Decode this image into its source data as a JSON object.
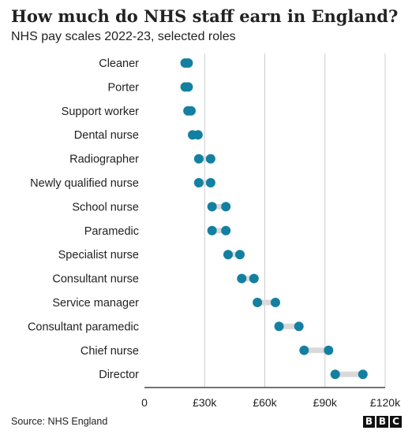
{
  "title": "How much do NHS staff earn in England?",
  "subtitle": "NHS pay scales 2022-23, selected roles",
  "source": "Source: NHS England",
  "logo": [
    "B",
    "B",
    "C"
  ],
  "colors": {
    "dot": "#1380a1",
    "range_bar": "#d9d9d9",
    "grid": "#cccccc",
    "axis": "#222222",
    "text": "#222222"
  },
  "chart_data": {
    "type": "dumbbell",
    "title": "How much do NHS staff earn in England?",
    "subtitle": "NHS pay scales 2022-23, selected roles",
    "xlabel": "",
    "ylabel": "",
    "xlim": [
      0,
      120000
    ],
    "grid": true,
    "x_ticks": [
      {
        "value": 0,
        "label": "0"
      },
      {
        "value": 30000,
        "label": "£30k"
      },
      {
        "value": 60000,
        "label": "£60k"
      },
      {
        "value": 90000,
        "label": "£90k"
      },
      {
        "value": 120000,
        "label": "£120k"
      }
    ],
    "categories": [
      "Cleaner",
      "Porter",
      "Support worker",
      "Dental nurse",
      "Radiographer",
      "Newly qualified nurse",
      "School nurse",
      "Paramedic",
      "Specialist nurse",
      "Consultant nurse",
      "Service manager",
      "Consultant paramedic",
      "Chief nurse",
      "Director"
    ],
    "ranges": [
      {
        "category": "Cleaner",
        "min": 20300,
        "max": 21800
      },
      {
        "category": "Porter",
        "min": 20300,
        "max": 21800
      },
      {
        "category": "Support worker",
        "min": 21700,
        "max": 23200
      },
      {
        "category": "Dental nurse",
        "min": 24000,
        "max": 26700
      },
      {
        "category": "Radiographer",
        "min": 27100,
        "max": 33000
      },
      {
        "category": "Newly qualified nurse",
        "min": 27100,
        "max": 33000
      },
      {
        "category": "School nurse",
        "min": 33700,
        "max": 40600
      },
      {
        "category": "Paramedic",
        "min": 33700,
        "max": 40600
      },
      {
        "category": "Specialist nurse",
        "min": 41700,
        "max": 47600
      },
      {
        "category": "Consultant nurse",
        "min": 48500,
        "max": 54600
      },
      {
        "category": "Service manager",
        "min": 56300,
        "max": 65300
      },
      {
        "category": "Consultant paramedic",
        "min": 67100,
        "max": 77000
      },
      {
        "category": "Chief nurse",
        "min": 79600,
        "max": 91800
      },
      {
        "category": "Director",
        "min": 95100,
        "max": 108900
      }
    ]
  }
}
